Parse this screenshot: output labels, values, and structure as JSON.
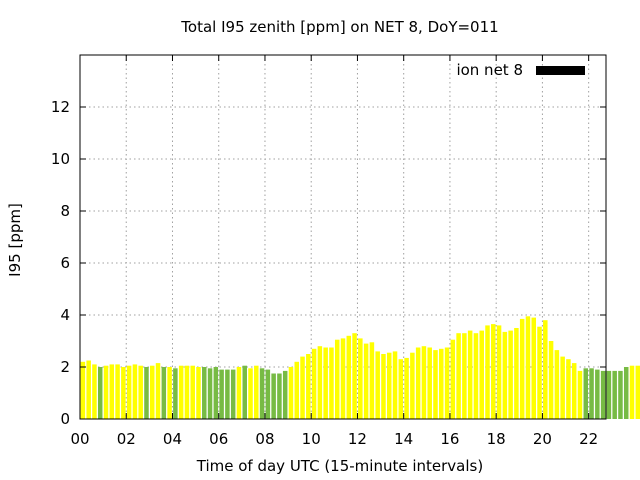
{
  "chart_data": {
    "type": "bar",
    "title": "Total I95 zenith [ppm] on NET 8, DoY=011",
    "xlabel": "Time of day UTC (15-minute intervals)",
    "ylabel": "I95 [ppm]",
    "xlim": [
      0,
      22.75
    ],
    "ylim": [
      0,
      14
    ],
    "xticks": [
      "00",
      "02",
      "04",
      "06",
      "08",
      "10",
      "12",
      "14",
      "16",
      "18",
      "20",
      "22"
    ],
    "yticks": [
      0,
      2,
      4,
      6,
      8,
      10,
      12
    ],
    "grid": true,
    "legend": {
      "label": "ion net 8",
      "color": "#000000",
      "position": "top-right"
    },
    "colors": {
      "yellow": "#ffff00",
      "green": "#77bb44"
    },
    "bin_width_hours": 0.25,
    "values": [
      2.2,
      2.25,
      2.1,
      2.0,
      2.05,
      2.1,
      2.1,
      2.0,
      2.05,
      2.1,
      2.05,
      2.0,
      2.05,
      2.15,
      2.0,
      2.0,
      1.95,
      2.05,
      2.05,
      2.05,
      2.0,
      2.0,
      1.95,
      2.0,
      1.9,
      1.9,
      1.9,
      2.0,
      2.05,
      1.95,
      2.05,
      1.95,
      1.9,
      1.75,
      1.75,
      1.85,
      2.0,
      2.2,
      2.4,
      2.5,
      2.7,
      2.8,
      2.75,
      2.75,
      3.05,
      3.1,
      3.2,
      3.3,
      3.1,
      2.9,
      2.95,
      2.6,
      2.5,
      2.55,
      2.6,
      2.3,
      2.35,
      2.55,
      2.75,
      2.8,
      2.75,
      2.65,
      2.7,
      2.75,
      3.05,
      3.3,
      3.3,
      3.4,
      3.3,
      3.4,
      3.6,
      3.65,
      3.6,
      3.35,
      3.4,
      3.5,
      3.85,
      3.95,
      3.9,
      3.55,
      3.8,
      3.0,
      2.65,
      2.4,
      2.3,
      2.15,
      1.85,
      1.95,
      1.95,
      1.9,
      1.85,
      1.85,
      1.85,
      1.85,
      2.0,
      2.05,
      2.05,
      2.0,
      1.9,
      2.05
    ],
    "color_index": [
      0,
      0,
      0,
      1,
      0,
      0,
      0,
      0,
      0,
      0,
      0,
      1,
      0,
      0,
      1,
      0,
      1,
      0,
      0,
      0,
      0,
      1,
      1,
      1,
      1,
      1,
      1,
      0,
      1,
      0,
      0,
      1,
      1,
      1,
      1,
      1,
      0,
      0,
      0,
      0,
      0,
      0,
      0,
      0,
      0,
      0,
      0,
      0,
      0,
      0,
      0,
      0,
      0,
      0,
      0,
      0,
      0,
      0,
      0,
      0,
      0,
      0,
      0,
      0,
      0,
      0,
      0,
      0,
      0,
      0,
      0,
      0,
      0,
      0,
      0,
      0,
      0,
      0,
      0,
      0,
      0,
      0,
      0,
      0,
      0,
      0,
      0,
      1,
      1,
      1,
      1,
      1,
      1,
      1,
      1,
      0,
      0,
      0,
      1,
      1
    ]
  }
}
